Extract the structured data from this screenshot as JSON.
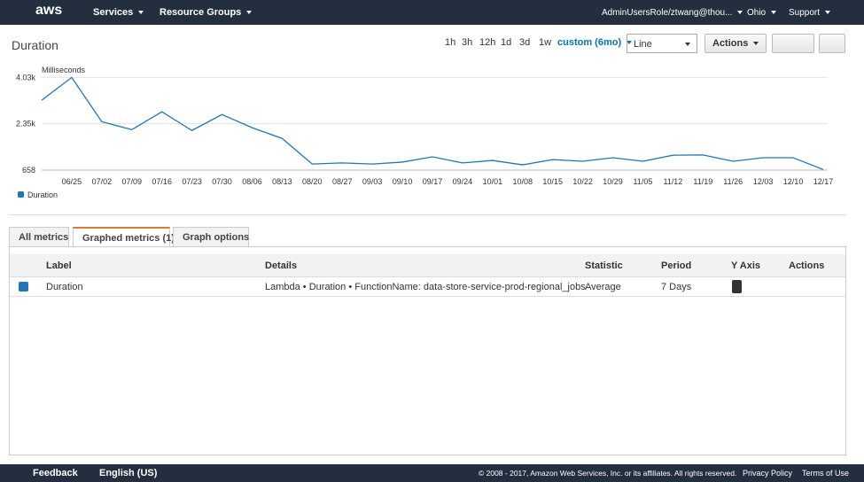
{
  "nav": {
    "logo": "aws",
    "services": "Services",
    "resource_groups": "Resource Groups",
    "user": "AdminUsersRole/ztwang@thou...",
    "region": "Ohio",
    "support": "Support"
  },
  "toolbar": {
    "title": "Duration",
    "ranges": [
      "1h",
      "3h",
      "12h",
      "1d",
      "3d",
      "1w"
    ],
    "custom_range": "custom (6mo)",
    "view": "Line",
    "actions": "Actions"
  },
  "chart_data": {
    "type": "line",
    "ylabel": "Milliseconds",
    "categories": [
      null,
      "06/25",
      "07/02",
      "07/09",
      "07/16",
      "07/23",
      "07/30",
      "08/06",
      "08/13",
      "08/20",
      "08/27",
      "09/03",
      "09/10",
      "09/17",
      "09/24",
      "10/01",
      "10/08",
      "10/15",
      "10/22",
      "10/29",
      "11/05",
      "11/12",
      "11/19",
      "11/26",
      "12/03",
      "12/10",
      "12/17"
    ],
    "series": [
      {
        "name": "Duration",
        "color": "#1f77b4",
        "values": [
          3200,
          4030,
          2420,
          2130,
          2780,
          2100,
          2680,
          2200,
          1810,
          880,
          920,
          880,
          950,
          1140,
          920,
          1010,
          850,
          1040,
          980,
          1110,
          980,
          1200,
          1210,
          980,
          1110,
          1110,
          680
        ]
      }
    ],
    "ylim": [
      658,
      4300
    ],
    "yticks": [
      {
        "value": 658,
        "label": "658"
      },
      {
        "value": 2350,
        "label": "2.35k"
      },
      {
        "value": 4030,
        "label": "4.03k"
      }
    ],
    "grid": true,
    "legend": "bottom-left"
  },
  "tabs": [
    "All metrics",
    "Graphed metrics (1)",
    "Graph options"
  ],
  "table": {
    "headers": [
      "Label",
      "Details",
      "Statistic",
      "Period",
      "Y Axis",
      "Actions"
    ],
    "rows": [
      [
        "Duration",
        "Lambda • Duration • FunctionName: data-store-service-prod-regional_jobs",
        "Average",
        "7 Days"
      ]
    ]
  },
  "footer": {
    "feedback": "Feedback",
    "language": "English (US)",
    "copyright": "© 2008 - 2017, Amazon Web Services, Inc. or its affiliates. All rights reserved.",
    "privacy": "Privacy Policy",
    "terms": "Terms of Use"
  }
}
